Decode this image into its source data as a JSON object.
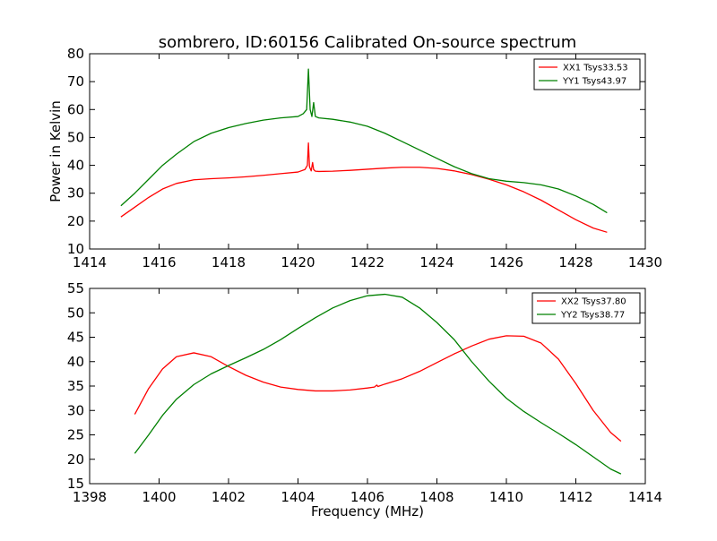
{
  "title": "sombrero, ID:60156 Calibrated On-source spectrum",
  "chart_data": [
    {
      "type": "line",
      "title": "sombrero, ID:60156 Calibrated On-source spectrum",
      "xlabel": "",
      "ylabel": "Power in Kelvin",
      "xlim": [
        1414,
        1430
      ],
      "ylim": [
        10,
        80
      ],
      "xticks": [
        1414,
        1416,
        1418,
        1420,
        1422,
        1424,
        1426,
        1428,
        1430
      ],
      "yticks": [
        10,
        20,
        30,
        40,
        50,
        60,
        70,
        80
      ],
      "grid": false,
      "legend_position": "top-right",
      "series": [
        {
          "name": "XX1 Tsys33.53",
          "color": "#ff0000",
          "x": [
            1414.9,
            1415.3,
            1415.7,
            1416.1,
            1416.5,
            1417.0,
            1417.5,
            1418.0,
            1418.5,
            1419.0,
            1419.5,
            1420.0,
            1420.2,
            1420.27,
            1420.3,
            1420.33,
            1420.38,
            1420.42,
            1420.45,
            1420.5,
            1420.6,
            1421.0,
            1421.5,
            1422.0,
            1422.5,
            1423.0,
            1423.5,
            1424.0,
            1424.5,
            1425.0,
            1425.5,
            1426.0,
            1426.5,
            1427.0,
            1427.5,
            1428.0,
            1428.5,
            1428.9
          ],
          "y": [
            21.5,
            25,
            28.5,
            31.5,
            33.5,
            34.8,
            35.2,
            35.5,
            35.9,
            36.4,
            37,
            37.6,
            38.5,
            40,
            48,
            39.5,
            38,
            41,
            38.5,
            37.9,
            37.8,
            37.9,
            38.2,
            38.6,
            39,
            39.3,
            39.3,
            38.9,
            38,
            36.7,
            35,
            33,
            30.5,
            27.5,
            24,
            20.5,
            17.5,
            16
          ]
        },
        {
          "name": "YY1 Tsys43.97",
          "color": "#008000",
          "x": [
            1414.9,
            1415.3,
            1415.7,
            1416.1,
            1416.5,
            1417.0,
            1417.5,
            1418.0,
            1418.5,
            1419.0,
            1419.5,
            1420.0,
            1420.15,
            1420.25,
            1420.3,
            1420.35,
            1420.4,
            1420.45,
            1420.5,
            1420.6,
            1421.0,
            1421.5,
            1422.0,
            1422.5,
            1423.0,
            1423.5,
            1424.0,
            1424.5,
            1425.0,
            1425.5,
            1426.0,
            1426.5,
            1427.0,
            1427.5,
            1428.0,
            1428.5,
            1428.9
          ],
          "y": [
            25.5,
            30,
            35,
            40,
            44,
            48.5,
            51.5,
            53.5,
            55,
            56.2,
            57,
            57.5,
            58.5,
            60,
            74.5,
            60,
            57.5,
            62.5,
            57.5,
            57,
            56.5,
            55.5,
            54,
            51.5,
            48.5,
            45.5,
            42.5,
            39.5,
            37,
            35.2,
            34.3,
            33.8,
            33,
            31.5,
            29,
            26,
            23
          ]
        }
      ]
    },
    {
      "type": "line",
      "title": "",
      "xlabel": "Frequency (MHz)",
      "ylabel": "",
      "xlim": [
        1398,
        1414
      ],
      "ylim": [
        15,
        55
      ],
      "xticks": [
        1398,
        1400,
        1402,
        1404,
        1406,
        1408,
        1410,
        1412,
        1414
      ],
      "yticks": [
        15,
        20,
        25,
        30,
        35,
        40,
        45,
        50,
        55
      ],
      "grid": false,
      "legend_position": "top-right",
      "series": [
        {
          "name": "XX2 Tsys37.80",
          "color": "#ff0000",
          "x": [
            1399.3,
            1399.7,
            1400.1,
            1400.5,
            1401.0,
            1401.5,
            1402.0,
            1402.5,
            1403.0,
            1403.5,
            1404.0,
            1404.5,
            1405.0,
            1405.5,
            1406.0,
            1406.2,
            1406.27,
            1406.3,
            1406.5,
            1407.0,
            1407.5,
            1408.0,
            1408.5,
            1409.0,
            1409.5,
            1410.0,
            1410.5,
            1411.0,
            1411.5,
            1412.0,
            1412.5,
            1413.0,
            1413.3
          ],
          "y": [
            29.2,
            34.5,
            38.5,
            41,
            41.8,
            41,
            39,
            37.2,
            35.8,
            34.8,
            34.3,
            34,
            34,
            34.2,
            34.6,
            34.8,
            35.2,
            34.9,
            35.4,
            36.5,
            38,
            39.8,
            41.6,
            43.2,
            44.6,
            45.3,
            45.2,
            43.8,
            40.5,
            35.5,
            30,
            25.5,
            23.7
          ]
        },
        {
          "name": "YY2 Tsys38.77",
          "color": "#008000",
          "x": [
            1399.3,
            1399.7,
            1400.1,
            1400.5,
            1401.0,
            1401.5,
            1402.0,
            1402.5,
            1403.0,
            1403.5,
            1404.0,
            1404.5,
            1405.0,
            1405.5,
            1406.0,
            1406.5,
            1407.0,
            1407.5,
            1408.0,
            1408.5,
            1409.0,
            1409.5,
            1410.0,
            1410.5,
            1411.0,
            1411.5,
            1412.0,
            1412.5,
            1413.0,
            1413.3
          ],
          "y": [
            21.2,
            25,
            29,
            32.3,
            35.3,
            37.5,
            39.2,
            40.8,
            42.5,
            44.5,
            46.8,
            49,
            51,
            52.5,
            53.5,
            53.8,
            53.2,
            51,
            48,
            44.5,
            40,
            36,
            32.5,
            29.8,
            27.5,
            25.3,
            23,
            20.5,
            18,
            17
          ]
        }
      ]
    }
  ]
}
